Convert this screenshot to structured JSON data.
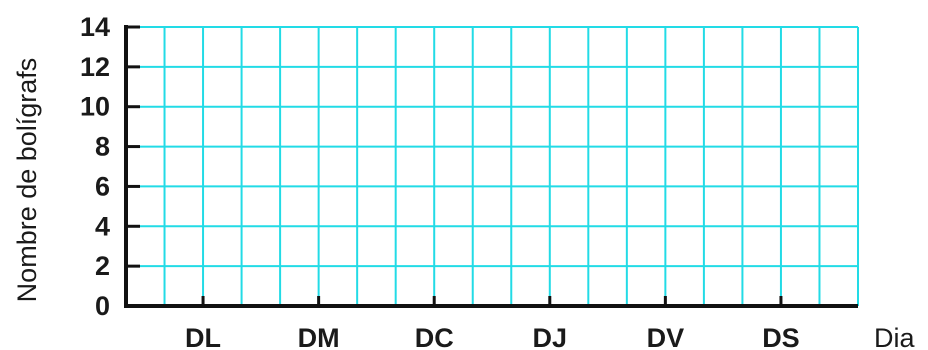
{
  "chart_data": {
    "type": "bar",
    "categories": [
      "DL",
      "DM",
      "DC",
      "DJ",
      "DV",
      "DS"
    ],
    "series": [],
    "title": "",
    "xlabel": "Dia",
    "ylabel": "Nombre de bolígrafs",
    "ylim": [
      0,
      14
    ],
    "yticks": [
      0,
      2,
      4,
      6,
      8,
      10,
      12,
      14
    ],
    "grid": true,
    "grid_color": "#22dbe6",
    "axis_color": "#111111"
  }
}
